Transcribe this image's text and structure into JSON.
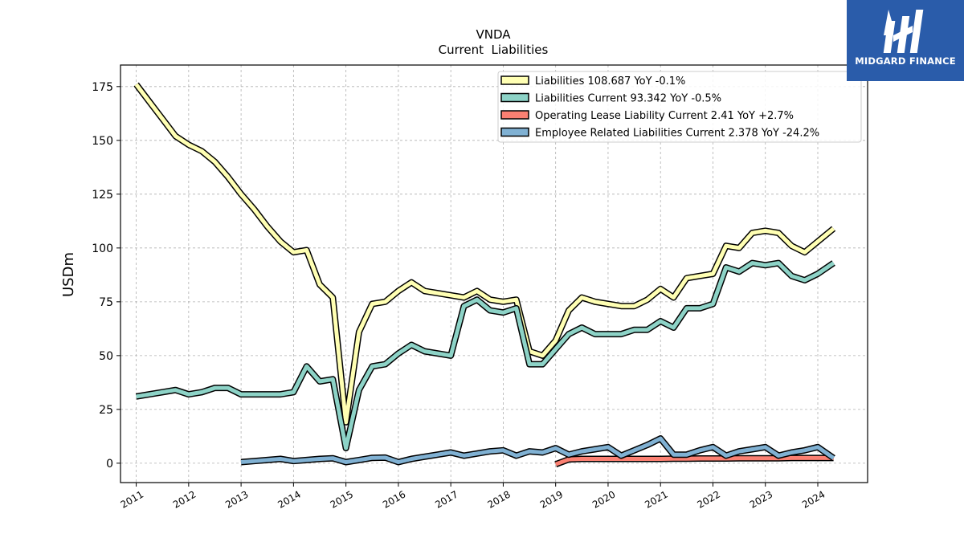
{
  "brand": {
    "name": "MIDGARD FINANCE",
    "logo_icon": "midgard-m-logo-icon",
    "bg_color": "#2a5caa"
  },
  "chart_data": {
    "type": "line",
    "title": "VNDA",
    "subtitle": "Current  Liabilities",
    "ylabel": "USDm",
    "xlabel": "",
    "xlim": [
      2010.7,
      2024.95
    ],
    "ylim": [
      -9,
      185
    ],
    "yticks": [
      0,
      25,
      50,
      75,
      100,
      125,
      150,
      175
    ],
    "xticks": [
      "2011",
      "2012",
      "2013",
      "2014",
      "2015",
      "2016",
      "2017",
      "2018",
      "2019",
      "2020",
      "2021",
      "2022",
      "2023",
      "2024"
    ],
    "grid": true,
    "legend_position": "top-right",
    "series": [
      {
        "name": "Liabilities  108.687 YoY -0.1%",
        "color": "#ffffb3",
        "x": [
          2011.0,
          2011.25,
          2011.5,
          2011.75,
          2012.0,
          2012.25,
          2012.5,
          2012.75,
          2013.0,
          2013.25,
          2013.5,
          2013.75,
          2014.0,
          2014.25,
          2014.5,
          2014.75,
          2015.0,
          2015.25,
          2015.5,
          2015.75,
          2016.0,
          2016.25,
          2016.5,
          2016.75,
          2017.0,
          2017.25,
          2017.5,
          2017.75,
          2018.0,
          2018.25,
          2018.5,
          2018.75,
          2019.0,
          2019.25,
          2019.5,
          2019.75,
          2020.0,
          2020.25,
          2020.5,
          2020.75,
          2021.0,
          2021.25,
          2021.5,
          2021.75,
          2022.0,
          2022.25,
          2022.5,
          2022.75,
          2023.0,
          2023.25,
          2023.5,
          2023.75,
          2024.0,
          2024.3
        ],
        "y": [
          176,
          168,
          160,
          152,
          148,
          145,
          140,
          133,
          125,
          118,
          110,
          103,
          98,
          99,
          83,
          77,
          19,
          61,
          74,
          75,
          80,
          84,
          80,
          79,
          78,
          77,
          80,
          76,
          75,
          76,
          52,
          50,
          57,
          71,
          77,
          75,
          74,
          73,
          73,
          76,
          81,
          77,
          86,
          87,
          88,
          101,
          100,
          107,
          108,
          107,
          101,
          98,
          103,
          109
        ]
      },
      {
        "name": "Liabilities Current  93.342 YoY -0.5%",
        "color": "#8dd3c7",
        "x": [
          2011.0,
          2011.25,
          2011.5,
          2011.75,
          2012.0,
          2012.25,
          2012.5,
          2012.75,
          2013.0,
          2013.25,
          2013.5,
          2013.75,
          2014.0,
          2014.25,
          2014.5,
          2014.75,
          2015.0,
          2015.25,
          2015.5,
          2015.75,
          2016.0,
          2016.25,
          2016.5,
          2016.75,
          2017.0,
          2017.25,
          2017.5,
          2017.75,
          2018.0,
          2018.25,
          2018.5,
          2018.75,
          2019.0,
          2019.25,
          2019.5,
          2019.75,
          2020.0,
          2020.25,
          2020.5,
          2020.75,
          2021.0,
          2021.25,
          2021.5,
          2021.75,
          2022.0,
          2022.25,
          2022.5,
          2022.75,
          2023.0,
          2023.25,
          2023.5,
          2023.75,
          2024.0,
          2024.3
        ],
        "y": [
          31,
          32,
          33,
          34,
          32,
          33,
          35,
          35,
          32,
          32,
          32,
          32,
          33,
          45,
          38,
          39,
          7,
          34,
          45,
          46,
          51,
          55,
          52,
          51,
          50,
          73,
          76,
          71,
          70,
          72,
          46,
          46,
          53,
          60,
          63,
          60,
          60,
          60,
          62,
          62,
          66,
          63,
          72,
          72,
          74,
          91,
          89,
          93,
          92,
          93,
          87,
          85,
          88,
          93
        ]
      },
      {
        "name": "Operating Lease Liability Current  2.41 YoY +2.7%",
        "color": "#fb8072",
        "x": [
          2019.0,
          2019.25,
          2019.5,
          2019.75,
          2020.0,
          2020.25,
          2020.5,
          2020.75,
          2021.0,
          2021.25,
          2021.5,
          2021.75,
          2022.0,
          2022.25,
          2022.5,
          2022.75,
          2023.0,
          2023.25,
          2023.5,
          2023.75,
          2024.0,
          2024.3
        ],
        "y": [
          -0.5,
          1.8,
          2.0,
          2.0,
          2.0,
          2.0,
          2.0,
          2.0,
          2.0,
          2.1,
          2.1,
          2.2,
          2.2,
          2.2,
          2.3,
          2.3,
          2.3,
          2.3,
          2.4,
          2.4,
          2.4,
          2.4
        ]
      },
      {
        "name": "Employee Related Liabilities Current  2.378 YoY -24.2%",
        "color": "#80b1d3",
        "x": [
          2013.0,
          2013.25,
          2013.5,
          2013.75,
          2014.0,
          2014.25,
          2014.5,
          2014.75,
          2015.0,
          2015.25,
          2015.5,
          2015.75,
          2016.0,
          2016.25,
          2016.5,
          2016.75,
          2017.0,
          2017.25,
          2017.5,
          2017.75,
          2018.0,
          2018.25,
          2018.5,
          2018.75,
          2019.0,
          2019.25,
          2019.5,
          2019.75,
          2020.0,
          2020.25,
          2020.5,
          2020.75,
          2021.0,
          2021.25,
          2021.5,
          2021.75,
          2022.0,
          2022.25,
          2022.5,
          2022.75,
          2023.0,
          2023.25,
          2023.5,
          2023.75,
          2024.0,
          2024.3
        ],
        "y": [
          0.5,
          1.0,
          1.5,
          2.0,
          1.0,
          1.5,
          2.0,
          2.3,
          0.5,
          1.5,
          2.5,
          2.6,
          0.5,
          2.0,
          3.0,
          4.0,
          5.0,
          3.5,
          4.5,
          5.5,
          6.0,
          3.5,
          5.5,
          5.0,
          7.0,
          4.0,
          5.5,
          6.5,
          7.5,
          3.5,
          6.0,
          8.5,
          11.5,
          4.0,
          4.0,
          6.0,
          7.5,
          3.5,
          5.5,
          6.5,
          7.5,
          3.5,
          5.0,
          6.0,
          7.5,
          2.4
        ]
      }
    ]
  }
}
